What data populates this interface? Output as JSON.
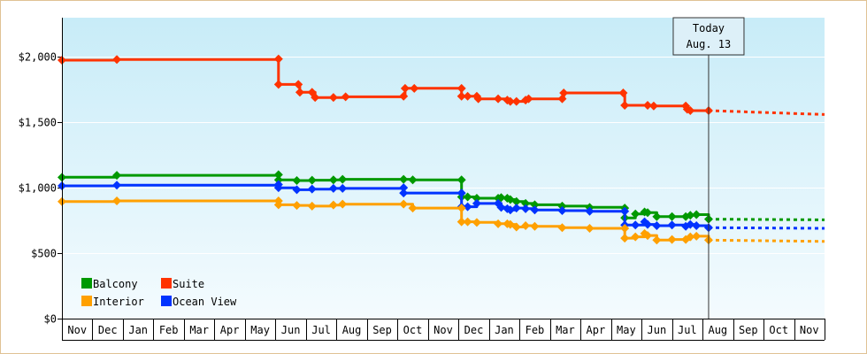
{
  "chart_data": {
    "type": "line",
    "step": true,
    "y_ticks": [
      "$0",
      "$500",
      "$1,000",
      "$1,500",
      "$2,000"
    ],
    "ylim": [
      0,
      2300
    ],
    "x_months": [
      "Nov",
      "Dec",
      "Jan",
      "Feb",
      "Mar",
      "Apr",
      "May",
      "Jun",
      "Jul",
      "Aug",
      "Sep",
      "Oct",
      "Nov",
      "Dec",
      "Jan",
      "Feb",
      "Mar",
      "Apr",
      "May",
      "Jun",
      "Jul",
      "Aug",
      "Sep",
      "Oct",
      "Nov"
    ],
    "today_label_line1": "Today",
    "today_label_line2": "Aug. 13",
    "today_x": 21.2,
    "grid": true,
    "legend_position": "bottom-left",
    "series": [
      {
        "name": "Suite",
        "color": "#ff3300",
        "points": [
          [
            0.0,
            1975
          ],
          [
            1.8,
            1980
          ],
          [
            7.1,
            1985
          ],
          [
            7.1,
            1790
          ],
          [
            7.75,
            1790
          ],
          [
            7.8,
            1730
          ],
          [
            8.2,
            1730
          ],
          [
            8.3,
            1690
          ],
          [
            8.9,
            1690
          ],
          [
            9.3,
            1695
          ],
          [
            11.2,
            1700
          ],
          [
            11.25,
            1760
          ],
          [
            11.55,
            1760
          ],
          [
            13.1,
            1760
          ],
          [
            13.1,
            1700
          ],
          [
            13.3,
            1700
          ],
          [
            13.6,
            1700
          ],
          [
            13.65,
            1680
          ],
          [
            14.3,
            1680
          ],
          [
            14.6,
            1670
          ],
          [
            14.7,
            1660
          ],
          [
            14.9,
            1660
          ],
          [
            15.2,
            1670
          ],
          [
            15.3,
            1680
          ],
          [
            16.4,
            1680
          ],
          [
            16.45,
            1725
          ],
          [
            18.4,
            1725
          ],
          [
            18.45,
            1630
          ],
          [
            19.2,
            1630
          ],
          [
            19.4,
            1625
          ],
          [
            20.45,
            1625
          ],
          [
            20.5,
            1600
          ],
          [
            20.6,
            1590
          ],
          [
            21.2,
            1590
          ]
        ],
        "forecast": [
          [
            21.2,
            1590
          ],
          [
            25.0,
            1560
          ]
        ]
      },
      {
        "name": "Balcony",
        "color": "#009900",
        "points": [
          [
            0.0,
            1080
          ],
          [
            1.8,
            1095
          ],
          [
            7.1,
            1100
          ],
          [
            7.1,
            1060
          ],
          [
            7.7,
            1055
          ],
          [
            8.2,
            1058
          ],
          [
            8.9,
            1060
          ],
          [
            9.2,
            1065
          ],
          [
            11.2,
            1065
          ],
          [
            11.5,
            1060
          ],
          [
            13.1,
            1060
          ],
          [
            13.1,
            930
          ],
          [
            13.3,
            930
          ],
          [
            13.6,
            920
          ],
          [
            14.3,
            920
          ],
          [
            14.4,
            925
          ],
          [
            14.6,
            920
          ],
          [
            14.7,
            910
          ],
          [
            14.9,
            895
          ],
          [
            15.2,
            880
          ],
          [
            15.5,
            870
          ],
          [
            16.4,
            860
          ],
          [
            17.3,
            850
          ],
          [
            18.45,
            845
          ],
          [
            18.45,
            770
          ],
          [
            18.8,
            800
          ],
          [
            19.1,
            815
          ],
          [
            19.2,
            810
          ],
          [
            19.5,
            780
          ],
          [
            20.0,
            780
          ],
          [
            20.45,
            780
          ],
          [
            20.6,
            790
          ],
          [
            20.8,
            795
          ],
          [
            21.2,
            760
          ]
        ],
        "forecast": [
          [
            21.2,
            760
          ],
          [
            25.0,
            755
          ]
        ]
      },
      {
        "name": "Ocean View",
        "color": "#0033ff",
        "points": [
          [
            0.0,
            1015
          ],
          [
            1.8,
            1020
          ],
          [
            7.1,
            1025
          ],
          [
            7.1,
            1000
          ],
          [
            7.7,
            985
          ],
          [
            8.2,
            990
          ],
          [
            8.9,
            995
          ],
          [
            9.2,
            995
          ],
          [
            11.2,
            1000
          ],
          [
            11.2,
            960
          ],
          [
            13.1,
            960
          ],
          [
            13.1,
            855
          ],
          [
            13.3,
            855
          ],
          [
            13.6,
            880
          ],
          [
            14.3,
            880
          ],
          [
            14.4,
            850
          ],
          [
            14.6,
            840
          ],
          [
            14.7,
            830
          ],
          [
            14.9,
            845
          ],
          [
            15.2,
            840
          ],
          [
            15.5,
            830
          ],
          [
            16.4,
            825
          ],
          [
            17.3,
            820
          ],
          [
            18.45,
            820
          ],
          [
            18.45,
            715
          ],
          [
            18.8,
            715
          ],
          [
            19.1,
            740
          ],
          [
            19.2,
            720
          ],
          [
            19.5,
            710
          ],
          [
            20.0,
            715
          ],
          [
            20.45,
            705
          ],
          [
            20.6,
            720
          ],
          [
            20.8,
            710
          ],
          [
            21.2,
            695
          ]
        ],
        "forecast": [
          [
            21.2,
            695
          ],
          [
            25.0,
            690
          ]
        ]
      },
      {
        "name": "Interior",
        "color": "#ffa000",
        "points": [
          [
            0.0,
            895
          ],
          [
            1.8,
            900
          ],
          [
            7.1,
            900
          ],
          [
            7.1,
            870
          ],
          [
            7.7,
            865
          ],
          [
            8.2,
            860
          ],
          [
            8.9,
            868
          ],
          [
            9.2,
            875
          ],
          [
            11.2,
            875
          ],
          [
            11.5,
            845
          ],
          [
            13.1,
            845
          ],
          [
            13.1,
            740
          ],
          [
            13.3,
            740
          ],
          [
            13.6,
            735
          ],
          [
            14.3,
            725
          ],
          [
            14.6,
            725
          ],
          [
            14.7,
            720
          ],
          [
            14.9,
            700
          ],
          [
            15.2,
            710
          ],
          [
            15.5,
            705
          ],
          [
            16.4,
            695
          ],
          [
            17.3,
            690
          ],
          [
            18.45,
            690
          ],
          [
            18.45,
            615
          ],
          [
            18.8,
            625
          ],
          [
            19.1,
            650
          ],
          [
            19.2,
            635
          ],
          [
            19.5,
            600
          ],
          [
            20.0,
            605
          ],
          [
            20.45,
            605
          ],
          [
            20.6,
            625
          ],
          [
            20.8,
            630
          ],
          [
            21.2,
            600
          ]
        ],
        "forecast": [
          [
            21.2,
            600
          ],
          [
            25.0,
            590
          ]
        ]
      }
    ],
    "legend": [
      {
        "label": "Balcony",
        "color": "#009900"
      },
      {
        "label": "Suite",
        "color": "#ff3300"
      },
      {
        "label": "Interior",
        "color": "#ffa000"
      },
      {
        "label": "Ocean View",
        "color": "#0033ff"
      }
    ]
  }
}
